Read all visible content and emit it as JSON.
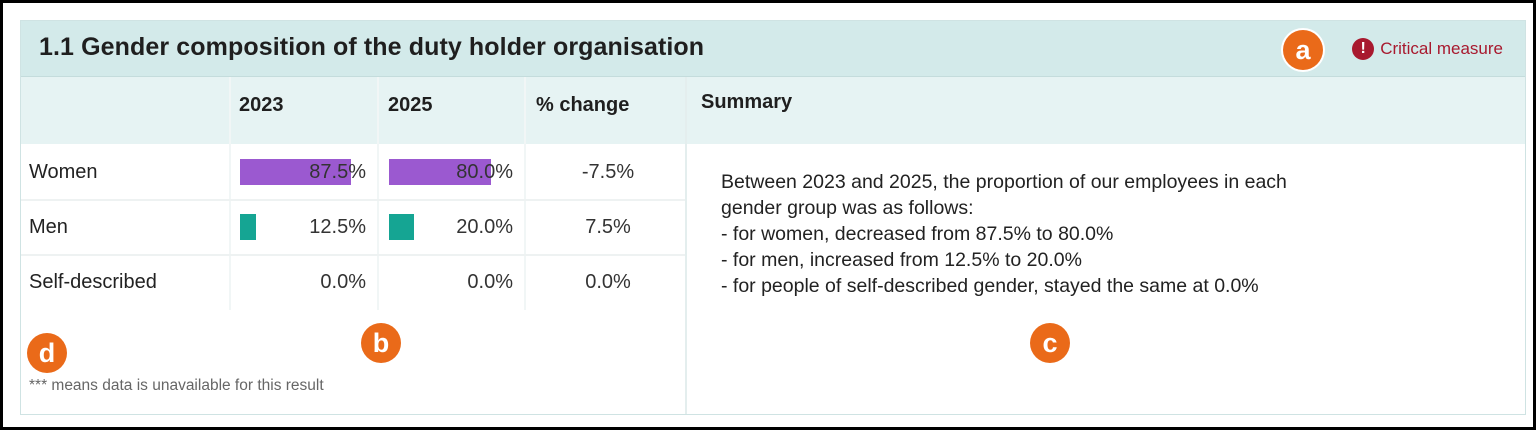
{
  "title": "1.1 Gender composition of the duty holder organisation",
  "critical_label": "Critical measure",
  "callouts": {
    "a": "a",
    "b": "b",
    "c": "c",
    "d": "d"
  },
  "columns": {
    "y1": "2023",
    "y2": "2025",
    "change": "% change",
    "summary": "Summary"
  },
  "rows": [
    {
      "label": "Women",
      "y1": "87.5%",
      "y2": "80.0%",
      "change": "-7.5%",
      "y1_frac": 0.875,
      "y2_frac": 0.8
    },
    {
      "label": "Men",
      "y1": "12.5%",
      "y2": "20.0%",
      "change": "7.5%",
      "y1_frac": 0.125,
      "y2_frac": 0.2
    },
    {
      "label": "Self-described",
      "y1": "0.0%",
      "y2": "0.0%",
      "change": "0.0%",
      "y1_frac": 0.0,
      "y2_frac": 0.0
    }
  ],
  "summary": {
    "line1": "Between 2023 and 2025, the proportion of our employees in each",
    "line2": "gender group was as follows:",
    "line3": "- for women, decreased from 87.5% to 80.0%",
    "line4": "- for men, increased from 12.5% to 20.0%",
    "line5": "- for people of self-described gender, stayed the same at 0.0%"
  },
  "footnote": "*** means data is unavailable for this result",
  "colors": {
    "women_bar": "#9b59d0",
    "men_bar": "#15a593",
    "critical": "#a8192e",
    "callout": "#ea6a19",
    "header_bg": "#d3eaea"
  }
}
